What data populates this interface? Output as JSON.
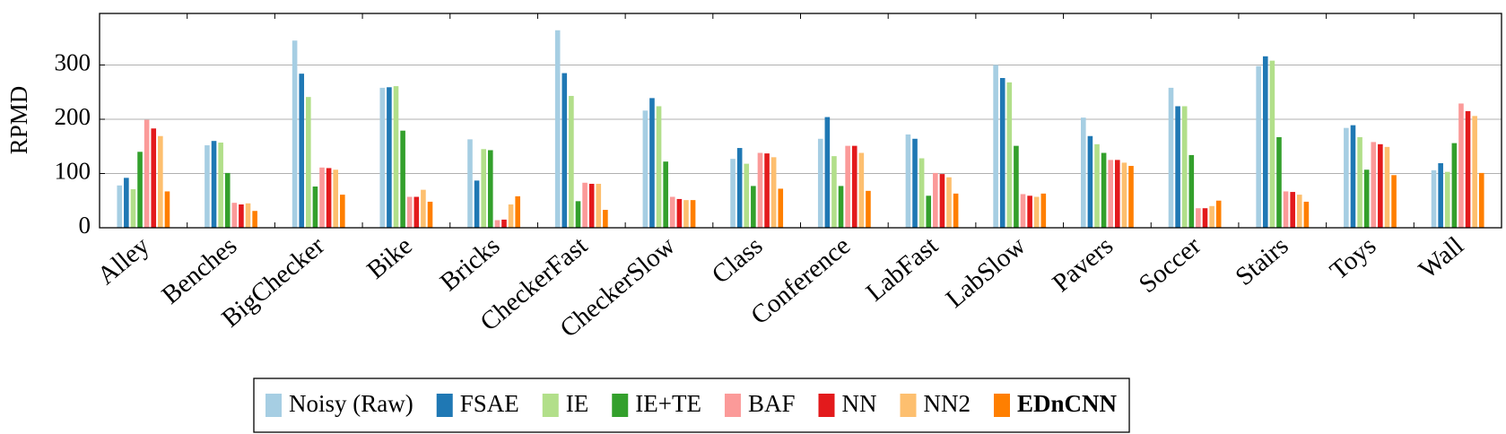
{
  "chart_data": {
    "type": "bar",
    "y_label": "RPMD",
    "categories": [
      "Alley",
      "Benches",
      "BigChecker",
      "Bike",
      "Bricks",
      "CheckerFast",
      "CheckerSlow",
      "Class",
      "Conference",
      "LabFast",
      "LabSlow",
      "Pavers",
      "Soccer",
      "Stairs",
      "Toys",
      "Wall"
    ],
    "series": [
      {
        "name": "Noisy (Raw)",
        "color": "#a6cee3",
        "values": [
          78,
          152,
          345,
          258,
          163,
          364,
          216,
          127,
          164,
          172,
          300,
          203,
          258,
          298,
          184,
          106
        ]
      },
      {
        "name": "FSAE",
        "color": "#1f78b4",
        "values": [
          92,
          160,
          284,
          259,
          87,
          285,
          239,
          147,
          204,
          164,
          276,
          169,
          224,
          316,
          189,
          119
        ]
      },
      {
        "name": "IE",
        "color": "#b2df8a",
        "values": [
          71,
          157,
          241,
          261,
          145,
          243,
          224,
          118,
          132,
          128,
          268,
          154,
          224,
          308,
          167,
          103
        ]
      },
      {
        "name": "IE+TE",
        "color": "#33a02c",
        "values": [
          140,
          101,
          76,
          179,
          143,
          49,
          122,
          77,
          77,
          59,
          151,
          138,
          134,
          167,
          107,
          156
        ]
      },
      {
        "name": "BAF",
        "color": "#fb9a99",
        "values": [
          199,
          46,
          111,
          57,
          14,
          83,
          57,
          138,
          151,
          101,
          62,
          125,
          36,
          67,
          158,
          229
        ]
      },
      {
        "name": "NN",
        "color": "#e31a1c",
        "values": [
          183,
          43,
          110,
          57,
          15,
          81,
          53,
          137,
          151,
          99,
          59,
          125,
          36,
          66,
          154,
          215
        ]
      },
      {
        "name": "NN2",
        "color": "#fdbf6f",
        "values": [
          169,
          45,
          107,
          70,
          43,
          81,
          51,
          130,
          138,
          93,
          57,
          120,
          40,
          61,
          149,
          206
        ]
      },
      {
        "name": "EDnCNN",
        "color": "#ff7f00",
        "values": [
          67,
          31,
          61,
          48,
          58,
          33,
          51,
          72,
          68,
          63,
          63,
          114,
          50,
          48,
          97,
          101
        ]
      }
    ],
    "ylim": [
      0,
      395
    ],
    "yticks": [
      0,
      100,
      200,
      300
    ],
    "grid": true
  }
}
